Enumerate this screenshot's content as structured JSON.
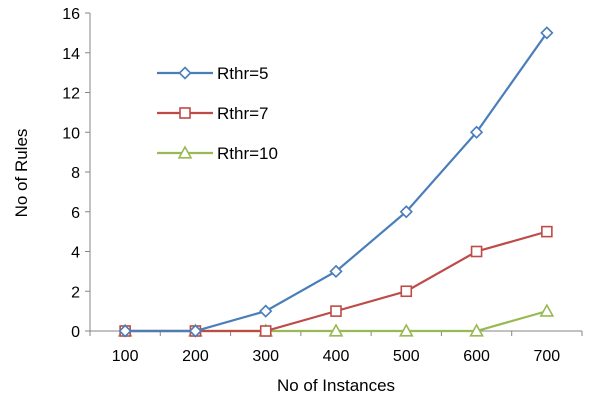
{
  "chart_data": {
    "type": "line",
    "title": "",
    "xlabel": "No of Instances",
    "ylabel": "No of Rules",
    "x": [
      100,
      200,
      300,
      400,
      500,
      600,
      700
    ],
    "ylim": [
      0,
      16
    ],
    "yticks": [
      0,
      2,
      4,
      6,
      8,
      10,
      12,
      14,
      16
    ],
    "grid": false,
    "legend_position": "upper-left inside",
    "series": [
      {
        "name": "Rthr=5",
        "values": [
          0,
          0,
          1,
          3,
          6,
          10,
          15
        ],
        "color": "#4a7ebb",
        "marker": "diamond"
      },
      {
        "name": "Rthr=7",
        "values": [
          0,
          0,
          0,
          1,
          2,
          4,
          5
        ],
        "color": "#be4b48",
        "marker": "square"
      },
      {
        "name": "Rthr=10",
        "values": [
          0,
          0,
          0,
          0,
          0,
          0,
          1
        ],
        "color": "#98b954",
        "marker": "triangle"
      }
    ]
  }
}
